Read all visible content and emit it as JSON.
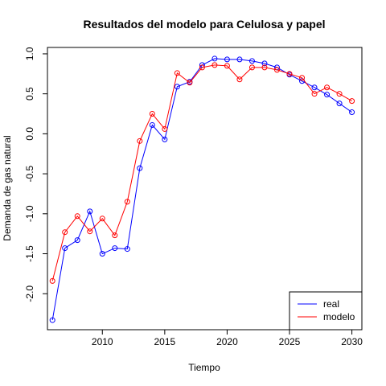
{
  "chart_data": {
    "type": "line",
    "title": "Resultados del modelo para Celulosa y papel",
    "xlabel": "Tiempo",
    "ylabel": "Demanda de gas natural",
    "x": [
      2006,
      2007,
      2008,
      2009,
      2010,
      2011,
      2012,
      2013,
      2014,
      2015,
      2016,
      2017,
      2018,
      2019,
      2020,
      2021,
      2022,
      2023,
      2024,
      2025,
      2026,
      2027,
      2028,
      2029,
      2030
    ],
    "xlim": [
      2005.6,
      2030.8
    ],
    "ylim": [
      -2.45,
      1.08
    ],
    "xticks": [
      2010,
      2015,
      2020,
      2025,
      2030
    ],
    "yticks": [
      -2.0,
      -1.5,
      -1.0,
      -0.5,
      0.0,
      0.5,
      1.0
    ],
    "ytick_labels": [
      "-2.0",
      "-1.5",
      "-1.0",
      "-0.5",
      "0.0",
      "0.5",
      "1.0"
    ],
    "grid": false,
    "legend_position": "bottom-right",
    "series": [
      {
        "name": "real",
        "color": "#0000ff",
        "values": [
          -2.33,
          -1.43,
          -1.33,
          -0.97,
          -1.5,
          -1.43,
          -1.44,
          -0.43,
          0.11,
          -0.07,
          0.59,
          0.65,
          0.86,
          0.94,
          0.93,
          0.93,
          0.91,
          0.88,
          0.83,
          0.74,
          0.66,
          0.58,
          0.49,
          0.38,
          0.27
        ]
      },
      {
        "name": "modelo",
        "color": "#ff0000",
        "values": [
          -1.84,
          -1.23,
          -1.03,
          -1.22,
          -1.06,
          -1.27,
          -0.85,
          -0.09,
          0.25,
          0.06,
          0.76,
          0.64,
          0.83,
          0.86,
          0.85,
          0.68,
          0.83,
          0.83,
          0.8,
          0.75,
          0.7,
          0.5,
          0.58,
          0.5,
          0.41
        ]
      }
    ]
  }
}
